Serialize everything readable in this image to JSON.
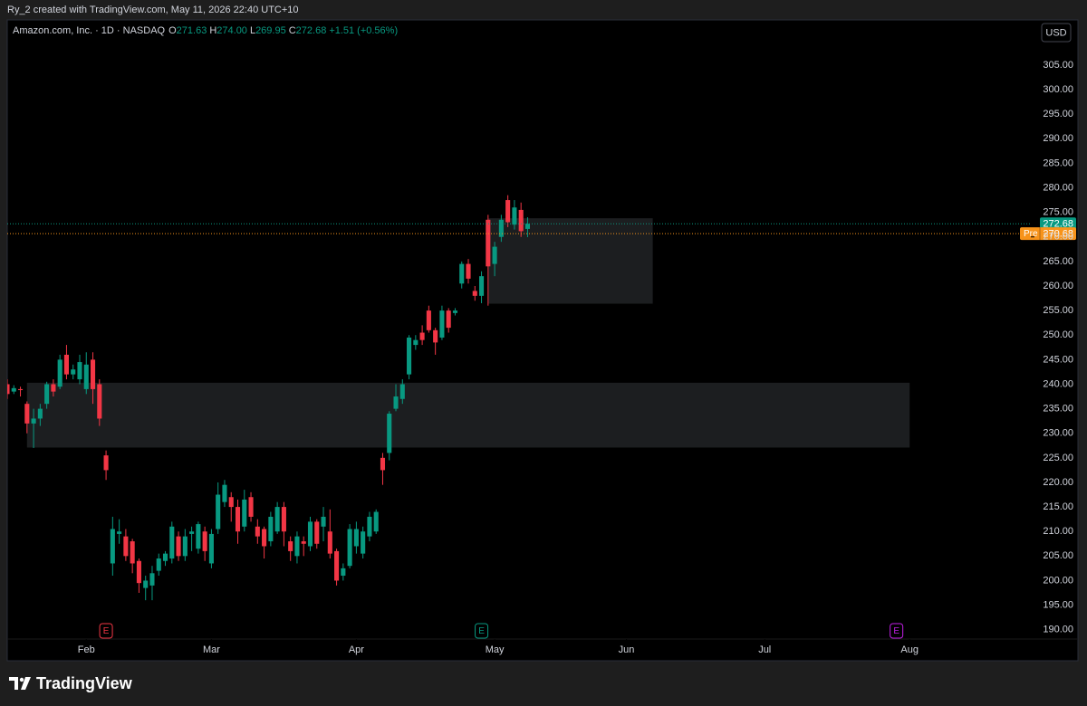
{
  "header": {
    "credit": "Ry_2 created with TradingView.com, May 11, 2026 22:40 UTC+10"
  },
  "footer": {
    "brand": "TradingView"
  },
  "chart_data": {
    "type": "candlestick",
    "legend": {
      "name": "Amazon.com, Inc. · 1D · NASDAQ",
      "fields": [
        {
          "key": "O",
          "value": 271.63
        },
        {
          "key": "H",
          "value": {
            "value": 274,
            "label": "274.00"
          }
        },
        {
          "key": "L",
          "value": 269.95
        },
        {
          "key": "C",
          "value": 272.68
        }
      ],
      "change": {
        "value": 1.51,
        "label": "+1.51"
      },
      "change_pct": {
        "value": 0.56,
        "label": "(+0.56%)"
      }
    },
    "currency": "USD",
    "up_color": "#089981",
    "down_color": "#f23645",
    "open": [
      240,
      238.5,
      239,
      236,
      232,
      233,
      236,
      240,
      239.5,
      246,
      242,
      241,
      239,
      245,
      240,
      225.5,
      203.5,
      209.5,
      209,
      208,
      204,
      198.5,
      199,
      202,
      204,
      204.5,
      209,
      205,
      209.5,
      206.5,
      210,
      203.5,
      210.5,
      216,
      217,
      215,
      211,
      217,
      211,
      210.5,
      208,
      210,
      215,
      208,
      205,
      208,
      207,
      212,
      211,
      210,
      206,
      201,
      203,
      207,
      205.5,
      209,
      210,
      225,
      226,
      235,
      237,
      242,
      248,
      250.5,
      255,
      251,
      249.5,
      255,
      254.5,
      260.5,
      264.5,
      259,
      258,
      273.5,
      264.5,
      270,
      277.5,
      272.5,
      275.5,
      271.63
    ],
    "high": [
      241,
      239.8,
      239.5,
      236.5,
      235,
      236,
      240.5,
      241,
      246,
      248,
      244,
      246,
      246.5,
      246.5,
      241,
      226.5,
      213,
      212.5,
      210.5,
      208.5,
      204.5,
      201,
      203,
      205.5,
      206,
      212,
      210,
      210.5,
      211,
      212,
      211,
      210.5,
      220,
      220.5,
      218,
      216.5,
      218.5,
      218,
      212.5,
      211,
      214,
      216,
      216,
      209,
      210,
      209,
      213,
      212.5,
      215,
      214.5,
      206.5,
      203.5,
      211.5,
      212,
      211,
      214,
      214.5,
      226,
      234.5,
      240,
      241,
      250,
      250,
      252,
      256,
      251.5,
      256,
      255.5,
      255.5,
      265,
      265.5,
      260,
      263,
      274.5,
      269,
      274.5,
      278.5,
      277.5,
      277,
      274
    ],
    "low": [
      237,
      238,
      237.5,
      230,
      227,
      231.5,
      235,
      237.5,
      239,
      241,
      241,
      240,
      238,
      236,
      231.5,
      220.5,
      201,
      207.5,
      204,
      201.5,
      197.5,
      196,
      196,
      201,
      203,
      203.5,
      204,
      204,
      206,
      205.5,
      204,
      202.5,
      209.5,
      215,
      212,
      207.5,
      210,
      212,
      207.5,
      204.5,
      207,
      209.5,
      207,
      204,
      203.5,
      205,
      206,
      206.5,
      208,
      204.5,
      199,
      200,
      202.5,
      205.5,
      204.5,
      208,
      209.5,
      219.5,
      224.5,
      234.5,
      236,
      241,
      247,
      248,
      250.5,
      246,
      249,
      250.5,
      254,
      259.5,
      260.5,
      257,
      256.5,
      256,
      262,
      269,
      272,
      271.5,
      270,
      269.95
    ],
    "close": [
      238,
      239.2,
      238.8,
      232,
      233,
      235,
      240,
      238.5,
      245,
      242,
      243,
      244.5,
      244,
      239,
      233,
      222.5,
      210.5,
      210,
      205,
      203.5,
      199.5,
      200,
      201.5,
      204.5,
      205.5,
      211,
      205,
      209,
      210,
      211.5,
      206,
      209.5,
      217.5,
      219.5,
      215,
      210,
      216.5,
      213,
      209,
      207,
      213,
      215,
      210,
      206,
      209,
      207.5,
      212,
      207.5,
      213,
      205.5,
      200,
      202.5,
      210.5,
      210.5,
      210,
      213,
      214,
      222.5,
      234,
      237.5,
      240,
      249.5,
      249,
      249,
      251,
      248.5,
      255,
      251.5,
      255,
      264.5,
      261.5,
      258,
      262,
      264,
      268,
      273.5,
      273,
      276,
      271.17,
      272.68
    ],
    "xlim": [
      0,
      155.4
    ],
    "xticks": [
      {
        "value": 12,
        "label": "Feb"
      },
      {
        "value": 31,
        "label": "Mar"
      },
      {
        "value": 53,
        "label": "Apr"
      },
      {
        "value": 74,
        "label": "May"
      },
      {
        "value": 94,
        "label": "Jun"
      },
      {
        "value": 115,
        "label": "Jul"
      },
      {
        "value": 137,
        "label": "Aug"
      }
    ],
    "ylim": [
      188.1,
      314.2
    ],
    "yticks": [
      {
        "value": 190,
        "label": "190.00"
      },
      {
        "value": 195,
        "label": "195.00"
      },
      {
        "value": 200,
        "label": "200.00"
      },
      {
        "value": 205,
        "label": "205.00"
      },
      {
        "value": 210,
        "label": "210.00"
      },
      {
        "value": 215,
        "label": "215.00"
      },
      {
        "value": 220,
        "label": "220.00"
      },
      {
        "value": 225,
        "label": "225.00"
      },
      {
        "value": 230,
        "label": "230.00"
      },
      {
        "value": 235,
        "label": "235.00"
      },
      {
        "value": 240,
        "label": "240.00"
      },
      {
        "value": 245,
        "label": "245.00"
      },
      {
        "value": 250,
        "label": "250.00"
      },
      {
        "value": 255,
        "label": "255.00"
      },
      {
        "value": 260,
        "label": "260.00"
      },
      {
        "value": 265,
        "label": "265.00"
      },
      {
        "value": 270,
        "label": "270.00"
      },
      {
        "value": 275,
        "label": "275.00"
      },
      {
        "value": 280,
        "label": "280.00"
      },
      {
        "value": 285,
        "label": "285.00"
      },
      {
        "value": 290,
        "label": "290.00"
      },
      {
        "value": 295,
        "label": "295.00"
      },
      {
        "value": 300,
        "label": "300.00"
      },
      {
        "value": 305,
        "label": "305.00"
      }
    ],
    "last_price": {
      "value": 272.68,
      "color": "#089981"
    },
    "pre_market": {
      "label": "Pre",
      "value": 270.68,
      "color": "#f7931a"
    },
    "zones": [
      {
        "from": 3,
        "to": 137,
        "top": 240.3,
        "bottom": 227.1
      },
      {
        "from": 73,
        "to": 98,
        "top": 273.8,
        "bottom": 256.4
      }
    ],
    "events": [
      {
        "label": "E",
        "x": 15,
        "color": "#f23645"
      },
      {
        "label": "E",
        "x": 72,
        "color": "#089981"
      },
      {
        "label": "E",
        "x": 135,
        "color": "#c21ee6"
      }
    ]
  }
}
